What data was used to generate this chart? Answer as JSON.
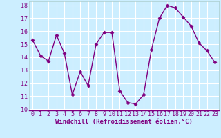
{
  "x": [
    0,
    1,
    2,
    3,
    4,
    5,
    6,
    7,
    8,
    9,
    10,
    11,
    12,
    13,
    14,
    15,
    16,
    17,
    18,
    19,
    20,
    21,
    22,
    23
  ],
  "y": [
    15.3,
    14.1,
    13.7,
    15.7,
    14.3,
    11.1,
    12.9,
    11.8,
    15.0,
    15.9,
    15.9,
    11.4,
    10.5,
    10.4,
    11.1,
    14.6,
    17.0,
    18.0,
    17.8,
    17.1,
    16.4,
    15.1,
    14.5,
    13.6
  ],
  "line_color": "#800080",
  "marker": "D",
  "marker_size": 2.5,
  "linewidth": 1.0,
  "bg_color": "#cceeff",
  "grid_color": "#ffffff",
  "xlabel": "Windchill (Refroidissement éolien,°C)",
  "ylim": [
    10,
    18
  ],
  "xlim": [
    -0.5,
    23.5
  ],
  "yticks": [
    10,
    11,
    12,
    13,
    14,
    15,
    16,
    17,
    18
  ],
  "xticks": [
    0,
    1,
    2,
    3,
    4,
    5,
    6,
    7,
    8,
    9,
    10,
    11,
    12,
    13,
    14,
    15,
    16,
    17,
    18,
    19,
    20,
    21,
    22,
    23
  ],
  "xlabel_fontsize": 6.5,
  "tick_fontsize": 6.0,
  "label_color": "#800080"
}
